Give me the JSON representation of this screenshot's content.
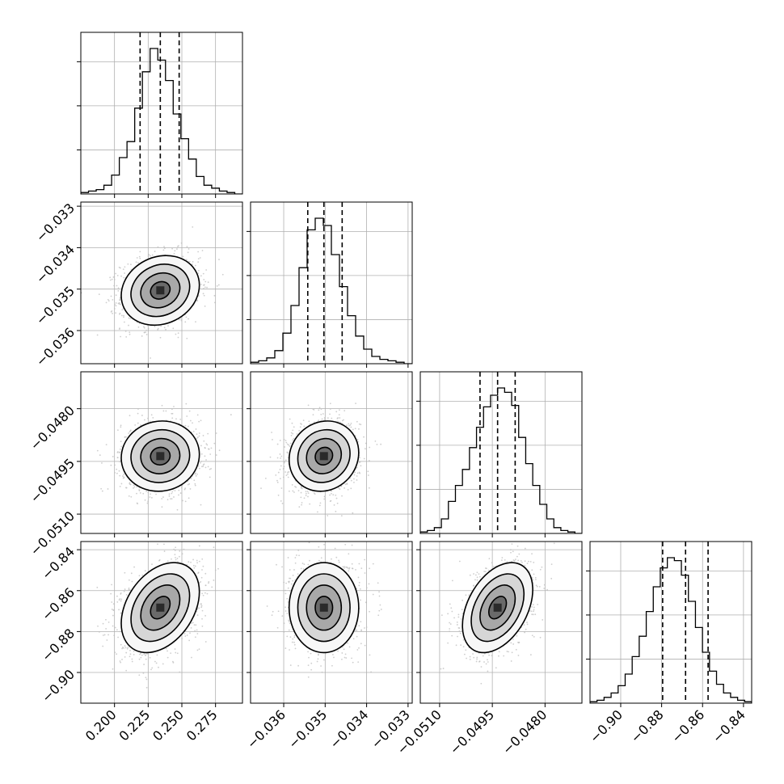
{
  "chart_data": {
    "type": "corner",
    "n_params": 4,
    "parameters": [
      {
        "range": [
          0.175,
          0.295
        ],
        "ticks": [
          0.2,
          0.225,
          0.25,
          0.275
        ],
        "tick_labels": [
          "0.200",
          "0.225",
          "0.250",
          "0.275"
        ],
        "quantiles": [
          0.219,
          0.234,
          0.248
        ],
        "median": 0.234,
        "sigma": 0.0145,
        "hist_counts": [
          1,
          2,
          3,
          6,
          13,
          25,
          36,
          59,
          84,
          100,
          92,
          78,
          55,
          38,
          24,
          12,
          6,
          4,
          2,
          1,
          0
        ]
      },
      {
        "range": [
          -0.0368,
          -0.0329
        ],
        "ticks": [
          -0.036,
          -0.035,
          -0.034,
          -0.033
        ],
        "tick_labels": [
          "−0.036",
          "−0.035",
          "−0.034",
          "−0.033"
        ],
        "quantiles": [
          -0.03542,
          -0.03503,
          -0.03459
        ],
        "median": -0.03503,
        "sigma": 0.00042,
        "hist_counts": [
          1,
          2,
          4,
          9,
          21,
          40,
          66,
          92,
          100,
          95,
          75,
          53,
          33,
          19,
          10,
          5,
          3,
          2,
          1,
          0
        ]
      },
      {
        "range": [
          -0.05155,
          -0.04695
        ],
        "ticks": [
          -0.051,
          -0.0495,
          -0.048
        ],
        "tick_labels": [
          "−0.0510",
          "−0.0495",
          "−0.0480"
        ],
        "quantiles": [
          -0.04985,
          -0.04935,
          -0.04885
        ],
        "median": -0.04935,
        "sigma": 0.0005,
        "hist_counts": [
          1,
          2,
          4,
          10,
          22,
          33,
          44,
          59,
          73,
          87,
          95,
          100,
          97,
          88,
          66,
          48,
          33,
          20,
          10,
          4,
          2,
          1,
          0
        ]
      },
      {
        "range": [
          -0.915,
          -0.836
        ],
        "ticks": [
          -0.9,
          -0.88,
          -0.86,
          -0.84
        ],
        "tick_labels": [
          "−0.90",
          "−0.88",
          "−0.86",
          "−0.84"
        ],
        "quantiles": [
          -0.8795,
          -0.8683,
          -0.8573
        ],
        "median": -0.8683,
        "sigma": 0.011,
        "hist_counts": [
          1,
          2,
          4,
          7,
          12,
          20,
          32,
          46,
          63,
          80,
          93,
          100,
          98,
          88,
          70,
          52,
          35,
          22,
          13,
          7,
          4,
          2,
          1
        ]
      }
    ],
    "correlations": {
      "1-0": 0.15,
      "2-0": 0.05,
      "2-1": 0.1,
      "3-0": 0.35,
      "3-1": 0.0,
      "3-2": 0.4
    },
    "contour_levels_sigma": [
      0.5,
      1.0,
      1.5,
      2.0
    ],
    "quantile_line_style": "dashed",
    "grid": true,
    "colors": {
      "contour": "#000000",
      "points": "#bdbdbd",
      "density_dark": "#2a2a2a"
    }
  }
}
